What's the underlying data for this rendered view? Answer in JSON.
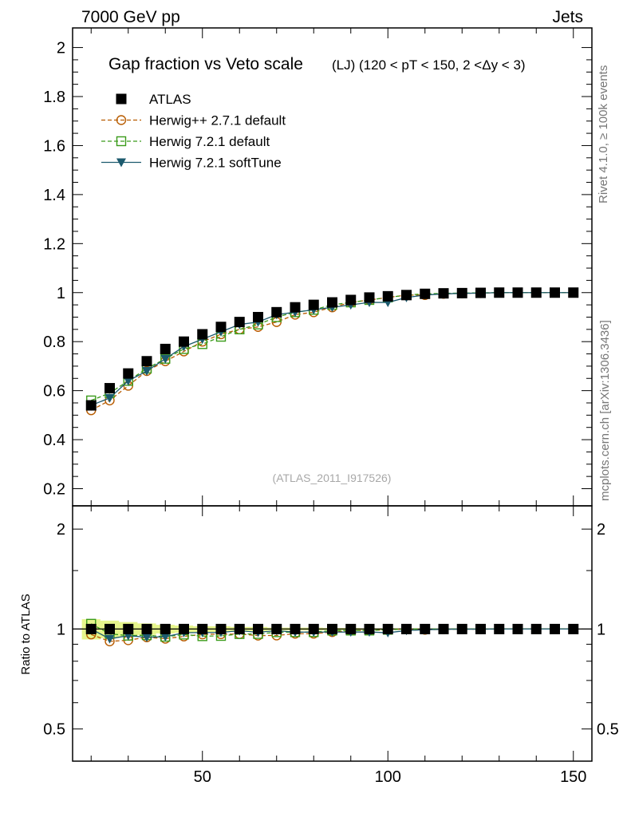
{
  "header": {
    "left": "7000 GeV pp",
    "right": "Jets"
  },
  "side_text": {
    "rivet": "Rivet 4.1.0, ≥ 100k events",
    "mcplots": "mcplots.cern.ch [arXiv:1306.3436]"
  },
  "colors": {
    "atlas": "#000000",
    "herwigpp": "#b85c00",
    "herwig721": "#3a9b1a",
    "softtune": "#1c5a6e",
    "band": "#e6f58c"
  },
  "chart_data": {
    "type": "scatter",
    "title_main": "Gap fraction vs Veto scale",
    "title_sub": "(LJ) (120 < pT < 150, 2 <Δy < 3)",
    "watermark": "(ATLAS_2011_I917526)",
    "ratio_ylabel": "Ratio to ATLAS",
    "xlim": [
      15,
      155
    ],
    "ylim_main": [
      0.13,
      2.08
    ],
    "ylim_ratio": [
      0.4,
      2.35
    ],
    "main_yticks": [
      "0.2",
      "0.4",
      "0.6",
      "0.8",
      "1",
      "1.2",
      "1.4",
      "1.6",
      "1.8",
      "2"
    ],
    "ratio_yticks": [
      "0.5",
      "1",
      "2"
    ],
    "xticks": [
      "50",
      "100",
      "150"
    ],
    "x": [
      20,
      25,
      30,
      35,
      40,
      45,
      50,
      55,
      60,
      65,
      70,
      75,
      80,
      85,
      90,
      95,
      100,
      105,
      110,
      115,
      120,
      125,
      130,
      135,
      140,
      145,
      150
    ],
    "series": [
      {
        "name": "ATLAS",
        "key": "atlas",
        "marker": "filled-square",
        "line": "none",
        "values": [
          0.54,
          0.61,
          0.67,
          0.72,
          0.77,
          0.8,
          0.83,
          0.86,
          0.88,
          0.9,
          0.92,
          0.94,
          0.95,
          0.96,
          0.97,
          0.98,
          0.985,
          0.99,
          0.995,
          0.997,
          0.998,
          0.999,
          1.0,
          1.0,
          1.0,
          1.0,
          1.0
        ]
      },
      {
        "name": "Herwig++ 2.7.1 default",
        "key": "herwigpp",
        "marker": "open-circle",
        "line": "dashed",
        "values": [
          0.52,
          0.56,
          0.62,
          0.68,
          0.72,
          0.76,
          0.8,
          0.83,
          0.85,
          0.86,
          0.88,
          0.91,
          0.92,
          0.94,
          0.96,
          0.97,
          0.98,
          0.99,
          0.99,
          0.995,
          0.997,
          0.998,
          1.0,
          1.0,
          1.0,
          1.0,
          1.0
        ]
      },
      {
        "name": "Herwig 7.2.1 default",
        "key": "herwig721",
        "marker": "open-square",
        "line": "dashed",
        "values": [
          0.56,
          0.59,
          0.64,
          0.69,
          0.73,
          0.77,
          0.79,
          0.82,
          0.85,
          0.87,
          0.9,
          0.92,
          0.93,
          0.95,
          0.96,
          0.97,
          0.98,
          0.99,
          0.995,
          0.997,
          0.998,
          0.999,
          1.0,
          1.0,
          1.0,
          1.0,
          1.0
        ]
      },
      {
        "name": "Herwig 7.2.1 softTune",
        "key": "softtune",
        "marker": "filled-triangle-down",
        "line": "solid",
        "values": [
          0.54,
          0.57,
          0.64,
          0.68,
          0.73,
          0.78,
          0.81,
          0.84,
          0.87,
          0.88,
          0.91,
          0.92,
          0.93,
          0.94,
          0.95,
          0.96,
          0.96,
          0.98,
          0.99,
          0.995,
          0.997,
          0.998,
          1.0,
          1.0,
          1.0,
          1.0,
          1.0
        ]
      }
    ],
    "ratio_band_halfwidth": [
      0.07,
      0.06,
      0.05,
      0.04,
      0.03,
      0.025,
      0.02,
      0.02,
      0.015,
      0.015,
      0.01,
      0.01,
      0.01,
      0.008,
      0.008,
      0.006,
      0.006,
      0.005,
      0.005,
      0.004,
      0.004,
      0.003,
      0.003,
      0.003,
      0.003,
      0.003,
      0.003
    ]
  }
}
